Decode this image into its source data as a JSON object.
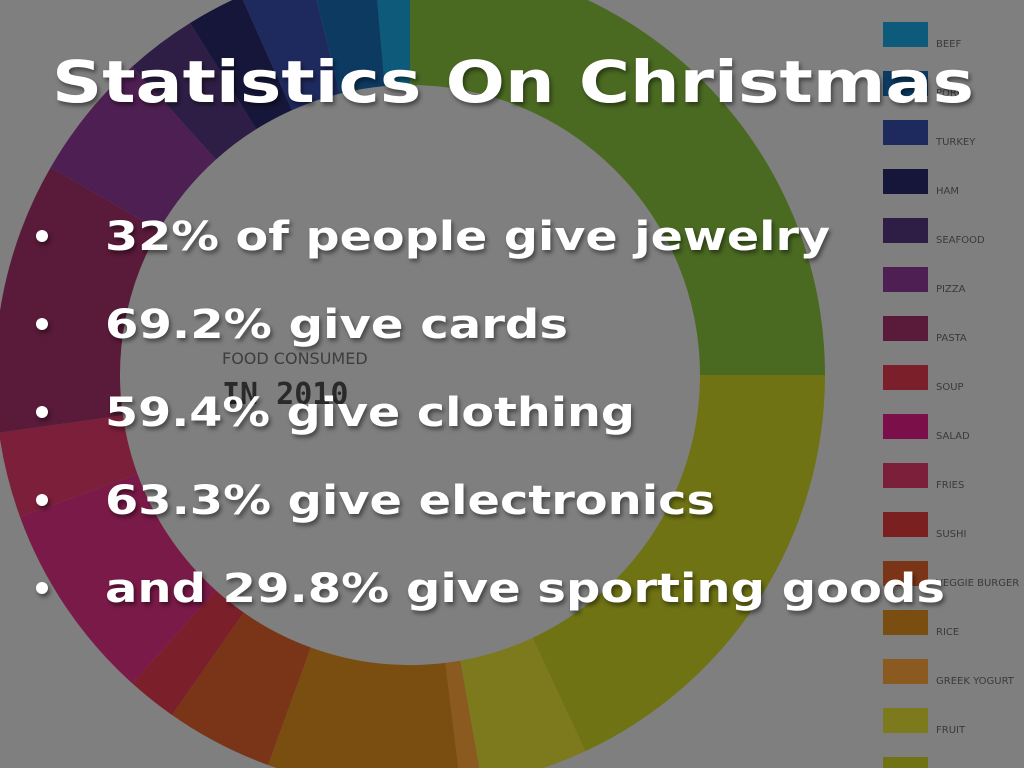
{
  "title": "Statistics On Christmas",
  "bullets": [
    "32% of people give jewelry",
    "69.2% give cards",
    "59.4% give clothing",
    "63.3% give electronics",
    "and 29.8% give sporting goods"
  ],
  "background_chart": {
    "title": "FOOD CONSUMED",
    "subtitle": "IN 2010",
    "legend": [
      "BEEF",
      "PORK",
      "TURKEY",
      "HAM",
      "SEAFOOD",
      "PIZZA",
      "PASTA",
      "SOUP",
      "SALAD",
      "FRIES",
      "SUSHI",
      "VEGGIE BURGER",
      "RICE",
      "GREEK YOGURT",
      "FRUIT"
    ]
  }
}
